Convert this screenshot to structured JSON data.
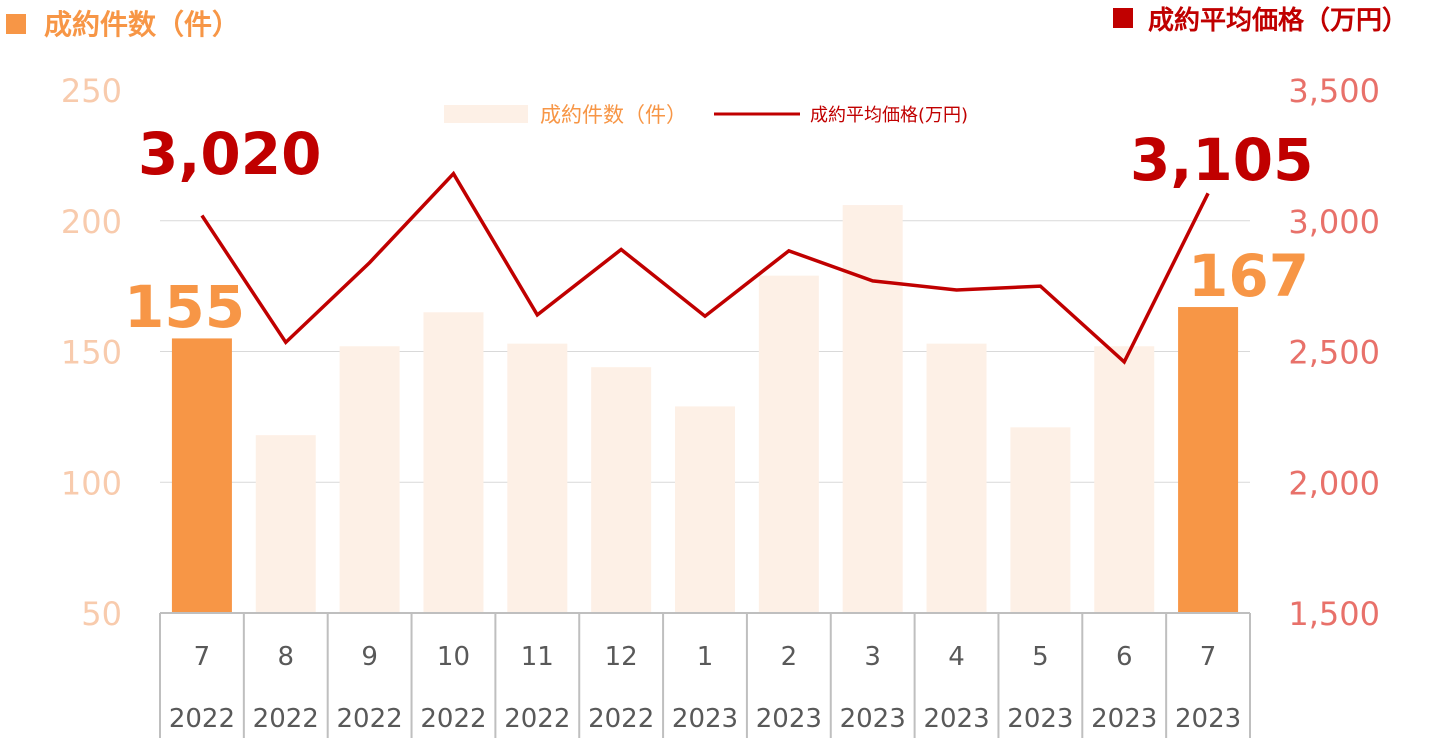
{
  "header": {
    "left_title": "成約件数（件）",
    "right_title": "成約平均価格（万円）"
  },
  "colors": {
    "bar_highlight": "#f79646",
    "bar_muted": "#fdf0e6",
    "line": "#c00000",
    "left_axis_text": "#f8cbad",
    "right_axis_text": "#e8716a",
    "left_title": "#f79646",
    "right_title": "#c00000",
    "gridline": "#d9d9d9",
    "table_border": "#bfbfbf",
    "category_text": "#595959"
  },
  "chart_data": {
    "type": "bar",
    "categories": [
      "7",
      "8",
      "9",
      "10",
      "11",
      "12",
      "1",
      "2",
      "3",
      "4",
      "5",
      "6",
      "7"
    ],
    "years": [
      "2022",
      "2022",
      "2022",
      "2022",
      "2022",
      "2022",
      "2023",
      "2023",
      "2023",
      "2023",
      "2023",
      "2023",
      "2023"
    ],
    "series": [
      {
        "name": "成約件数（件）",
        "type": "bar",
        "axis": "left",
        "values": [
          155,
          118,
          152,
          165,
          153,
          144,
          129,
          179,
          206,
          153,
          121,
          152,
          167
        ],
        "highlight": [
          true,
          false,
          false,
          false,
          false,
          false,
          false,
          false,
          false,
          false,
          false,
          false,
          true
        ]
      },
      {
        "name": "成約平均価格(万円)",
        "type": "line",
        "axis": "right",
        "values": [
          3020,
          2535,
          2840,
          3180,
          2640,
          2890,
          2635,
          2885,
          2770,
          2735,
          2750,
          2460,
          3105
        ]
      }
    ],
    "left_axis": {
      "min": 50,
      "max": 250,
      "ticks": [
        "250",
        "200",
        "150",
        "100",
        "50"
      ]
    },
    "right_axis": {
      "min": 1500,
      "max": 3500,
      "ticks": [
        "3,500",
        "3,000",
        "2,500",
        "2,000",
        "1,500"
      ]
    },
    "annotations": {
      "bar_first": "155",
      "bar_last": "167",
      "line_first": "3,020",
      "line_last": "3,105"
    },
    "grid": true,
    "legend": "top-center"
  }
}
